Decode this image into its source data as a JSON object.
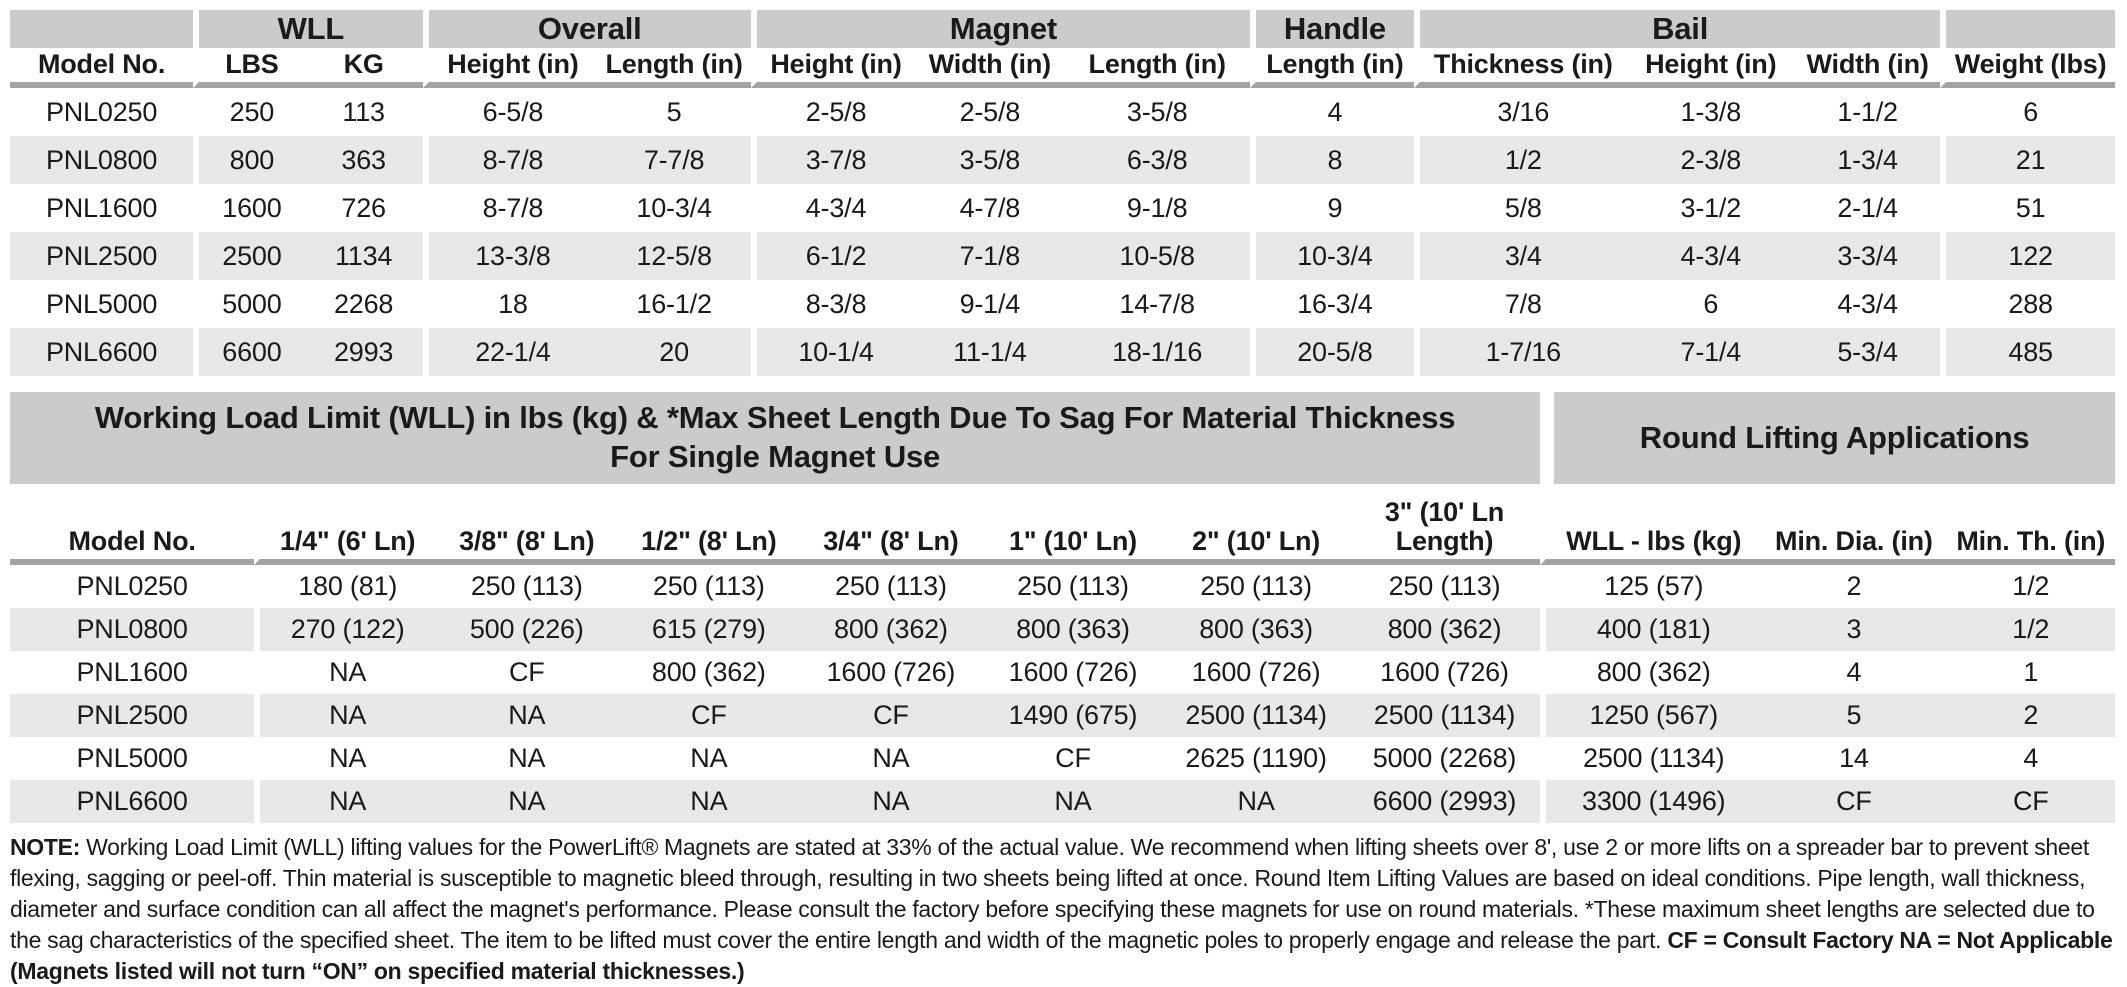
{
  "colors": {
    "header_band": "#cbcbcb",
    "row_stripe": "#e8e8e8",
    "header_underline": "#a3a3a3",
    "text": "#1a1a1a",
    "background": "#ffffff"
  },
  "spec_table": {
    "group_headers": [
      {
        "label": "",
        "span": "1"
      },
      {
        "label": "WLL",
        "span": "2"
      },
      {
        "label": "Overall",
        "span": "2"
      },
      {
        "label": "Magnet",
        "span": "3"
      },
      {
        "label": "Handle",
        "span": "1"
      },
      {
        "label": "Bail",
        "span": "3"
      },
      {
        "label": "",
        "span": "1"
      }
    ],
    "columns": [
      "Model No.",
      "LBS",
      "KG",
      "Height (in)",
      "Length (in)",
      "Height (in)",
      "Width (in)",
      "Length (in)",
      "Length (in)",
      "Thickness (in)",
      "Height (in)",
      "Width (in)",
      "Weight (lbs)"
    ],
    "rows": [
      [
        "PNL0250",
        "250",
        "113",
        "6-5/8",
        "5",
        "2-5/8",
        "2-5/8",
        "3-5/8",
        "4",
        "3/16",
        "1-3/8",
        "1-1/2",
        "6"
      ],
      [
        "PNL0800",
        "800",
        "363",
        "8-7/8",
        "7-7/8",
        "3-7/8",
        "3-5/8",
        "6-3/8",
        "8",
        "1/2",
        "2-3/8",
        "1-3/4",
        "21"
      ],
      [
        "PNL1600",
        "1600",
        "726",
        "8-7/8",
        "10-3/4",
        "4-3/4",
        "4-7/8",
        "9-1/8",
        "9",
        "5/8",
        "3-1/2",
        "2-1/4",
        "51"
      ],
      [
        "PNL2500",
        "2500",
        "1134",
        "13-3/8",
        "12-5/8",
        "6-1/2",
        "7-1/8",
        "10-5/8",
        "10-3/4",
        "3/4",
        "4-3/4",
        "3-3/4",
        "122"
      ],
      [
        "PNL5000",
        "5000",
        "2268",
        "18",
        "16-1/2",
        "8-3/8",
        "9-1/4",
        "14-7/8",
        "16-3/4",
        "7/8",
        "6",
        "4-3/4",
        "288"
      ],
      [
        "PNL6600",
        "6600",
        "2993",
        "22-1/4",
        "20",
        "10-1/4",
        "11-1/4",
        "18-1/16",
        "20-5/8",
        "1-7/16",
        "7-1/4",
        "5-3/4",
        "485"
      ]
    ]
  },
  "load_table": {
    "title_left": "Working Load Limit (WLL) in lbs (kg) & *Max Sheet Length Due To Sag For Material Thickness For Single Magnet Use",
    "title_right": "Round Lifting Applications",
    "columns": [
      "Model No.",
      "1/4\" (6' Ln)",
      "3/8\" (8' Ln)",
      "1/2\" (8' Ln)",
      "3/4\" (8' Ln)",
      "1\" (10' Ln)",
      "2\" (10' Ln)",
      "3\" (10' Ln Length)",
      "WLL - lbs (kg)",
      "Min. Dia. (in)",
      "Min. Th. (in)"
    ],
    "rows": [
      [
        "PNL0250",
        "180 (81)",
        "250 (113)",
        "250 (113)",
        "250 (113)",
        "250 (113)",
        "250 (113)",
        "250 (113)",
        "125 (57)",
        "2",
        "1/2"
      ],
      [
        "PNL0800",
        "270 (122)",
        "500 (226)",
        "615 (279)",
        "800 (362)",
        "800 (363)",
        "800 (363)",
        "800 (362)",
        "400 (181)",
        "3",
        "1/2"
      ],
      [
        "PNL1600",
        "NA",
        "CF",
        "800 (362)",
        "1600 (726)",
        "1600 (726)",
        "1600 (726)",
        "1600 (726)",
        "800 (362)",
        "4",
        "1"
      ],
      [
        "PNL2500",
        "NA",
        "NA",
        "CF",
        "CF",
        "1490 (675)",
        "2500 (1134)",
        "2500 (1134)",
        "1250 (567)",
        "5",
        "2"
      ],
      [
        "PNL5000",
        "NA",
        "NA",
        "NA",
        "NA",
        "CF",
        "2625 (1190)",
        "5000 (2268)",
        "2500 (1134)",
        "14",
        "4"
      ],
      [
        "PNL6600",
        "NA",
        "NA",
        "NA",
        "NA",
        "NA",
        "NA",
        "6600 (2993)",
        "3300 (1496)",
        "CF",
        "CF"
      ]
    ]
  },
  "note": {
    "label": "NOTE:",
    "body": "Working Load Limit (WLL) lifting values for the PowerLift® Magnets are stated at 33% of the actual value. We recommend when lifting sheets over 8', use 2 or more lifts on a spreader bar to prevent sheet flexing, sagging or peel-off. Thin material is susceptible to magnetic bleed through, resulting in two sheets being lifted at once.  Round Item Lifting Values are based on ideal conditions. Pipe length, wall thickness, diameter and surface condition can all affect the magnet's performance. Please consult the factory before specifying these magnets for use on round materials. *These maximum sheet lengths are selected due to the sag characteristics of the specified sheet. The item to be lifted must cover the entire length and width of the magnetic poles to properly engage and release the part.",
    "bold_tail": "CF = Consult Factory NA = Not Applicable (Magnets listed will not turn “ON” on specified material thicknesses.)"
  }
}
